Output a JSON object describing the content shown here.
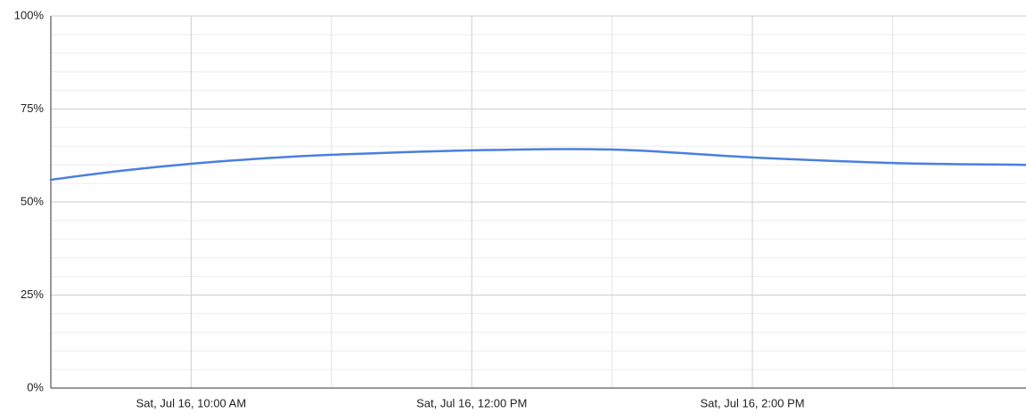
{
  "chart_data": {
    "type": "line",
    "x": [
      9,
      9.5,
      10,
      10.5,
      11,
      12,
      13,
      14,
      15,
      15.95
    ],
    "values": [
      56,
      58.4,
      60.3,
      61.7,
      62.7,
      63.9,
      64.1,
      62,
      60.5,
      60
    ],
    "color": "#4a7fe0",
    "xlim": [
      9,
      15.95
    ],
    "xticks": [
      {
        "value": 10,
        "label": "Sat, Jul 16, 10:00 AM"
      },
      {
        "value": 12,
        "label": "Sat, Jul 16, 12:00 PM"
      },
      {
        "value": 14,
        "label": "Sat, Jul 16, 2:00 PM"
      }
    ],
    "xminor": [
      11,
      13,
      15
    ],
    "ylim": [
      0,
      100
    ],
    "yticks": [
      {
        "value": 0,
        "label": "0%"
      },
      {
        "value": 25,
        "label": "25%"
      },
      {
        "value": 50,
        "label": "50%"
      },
      {
        "value": 75,
        "label": "75%"
      },
      {
        "value": 100,
        "label": "100%"
      }
    ],
    "yminor_count": 4,
    "grid": true
  }
}
